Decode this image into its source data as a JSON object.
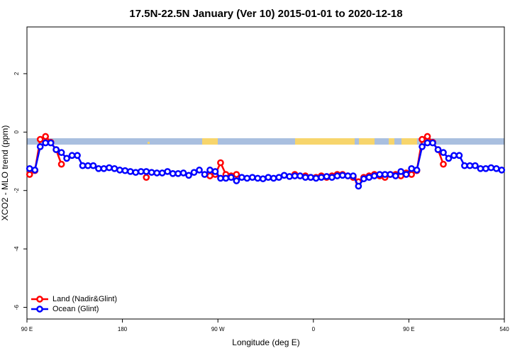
{
  "chart_data": {
    "type": "line",
    "title": "17.5N-22.5N January (Ver 10)   2015-01-01 to 2020-12-18",
    "x_label": "Longitude (deg E)",
    "y_label": "XCO2 - MLO trend (ppm)",
    "x": [
      92.5,
      97.5,
      102.5,
      107.5,
      112.5,
      117.5,
      122.5,
      127.5,
      132.5,
      137.5,
      142.5,
      147.5,
      152.5,
      157.5,
      162.5,
      167.5,
      172.5,
      177.5,
      182.5,
      187.5,
      192.5,
      197.5,
      202.5,
      207.5,
      212.5,
      217.5,
      222.5,
      227.5,
      232.5,
      237.5,
      242.5,
      247.5,
      252.5,
      257.5,
      262.5,
      267.5,
      272.5,
      277.5,
      282.5,
      287.5,
      292.5,
      297.5,
      302.5,
      307.5,
      312.5,
      317.5,
      322.5,
      327.5,
      332.5,
      337.5,
      342.5,
      347.5,
      352.5,
      357.5,
      362.5,
      367.5,
      372.5,
      377.5,
      382.5,
      387.5,
      392.5,
      397.5,
      402.5,
      407.5,
      412.5,
      417.5,
      422.5,
      427.5,
      432.5,
      437.5,
      442.5,
      447.5,
      452.5,
      457.5,
      462.5,
      467.5,
      472.5,
      477.5,
      482.5,
      487.5,
      492.5,
      497.5,
      502.5,
      507.5,
      512.5,
      517.5,
      522.5,
      527.5,
      532.5,
      537.5
    ],
    "series": [
      {
        "name": "Land (Nadir&Glint)",
        "color": "#ff0000",
        "values": [
          -1.45,
          -1.32,
          -0.25,
          -0.15,
          -0.35,
          -0.6,
          -1.1,
          null,
          null,
          null,
          null,
          null,
          null,
          null,
          null,
          null,
          null,
          null,
          null,
          null,
          null,
          null,
          -1.55,
          null,
          null,
          null,
          null,
          null,
          null,
          null,
          null,
          null,
          null,
          null,
          -1.5,
          -1.45,
          -1.05,
          -1.45,
          -1.5,
          -1.45,
          null,
          null,
          null,
          null,
          null,
          null,
          null,
          null,
          null,
          null,
          -1.45,
          -1.5,
          -1.5,
          -1.55,
          -1.55,
          -1.5,
          -1.55,
          -1.5,
          -1.45,
          -1.45,
          -1.5,
          -1.55,
          -1.7,
          -1.55,
          -1.5,
          -1.45,
          -1.5,
          -1.55,
          -1.45,
          -1.45,
          -1.5,
          -1.4,
          -1.45,
          -1.32,
          -0.25,
          -0.15,
          -0.35,
          -0.6,
          -1.1,
          null,
          null,
          null,
          null,
          null,
          null,
          null,
          null,
          null,
          null,
          null
        ]
      },
      {
        "name": "Ocean (Glint)",
        "color": "#0000ff",
        "values": [
          -1.25,
          -1.3,
          -0.5,
          -0.37,
          -0.37,
          -0.6,
          -0.7,
          -0.9,
          -0.8,
          -0.8,
          -1.15,
          -1.15,
          -1.15,
          -1.25,
          -1.25,
          -1.22,
          -1.25,
          -1.3,
          -1.32,
          -1.35,
          -1.38,
          -1.35,
          -1.35,
          -1.38,
          -1.4,
          -1.4,
          -1.35,
          -1.42,
          -1.42,
          -1.4,
          -1.48,
          -1.38,
          -1.3,
          -1.45,
          -1.3,
          -1.35,
          -1.58,
          -1.58,
          -1.55,
          -1.67,
          -1.55,
          -1.58,
          -1.55,
          -1.58,
          -1.6,
          -1.55,
          -1.58,
          -1.55,
          -1.48,
          -1.52,
          -1.5,
          -1.5,
          -1.55,
          -1.55,
          -1.58,
          -1.55,
          -1.52,
          -1.55,
          -1.5,
          -1.48,
          -1.5,
          -1.5,
          -1.85,
          -1.6,
          -1.55,
          -1.5,
          -1.45,
          -1.45,
          -1.45,
          -1.5,
          -1.35,
          -1.45,
          -1.25,
          -1.3,
          -0.5,
          -0.37,
          -0.37,
          -0.6,
          -0.7,
          -0.9,
          -0.8,
          -0.8,
          -1.15,
          -1.15,
          -1.15,
          -1.25,
          -1.25,
          -1.22,
          -1.25,
          -1.3
        ]
      }
    ],
    "xlim": [
      90,
      540
    ],
    "xticks": [
      {
        "value": 90,
        "label": "90 E"
      },
      180,
      {
        "value": 270,
        "label": "90 W"
      },
      {
        "value": 360,
        "label": "0"
      },
      {
        "value": 450,
        "label": "90 E"
      },
      540
    ],
    "ylim": [
      -6.4,
      3.6
    ],
    "yticks": [
      -6,
      -4,
      -2,
      0,
      2
    ],
    "legend": "bottom-left"
  }
}
